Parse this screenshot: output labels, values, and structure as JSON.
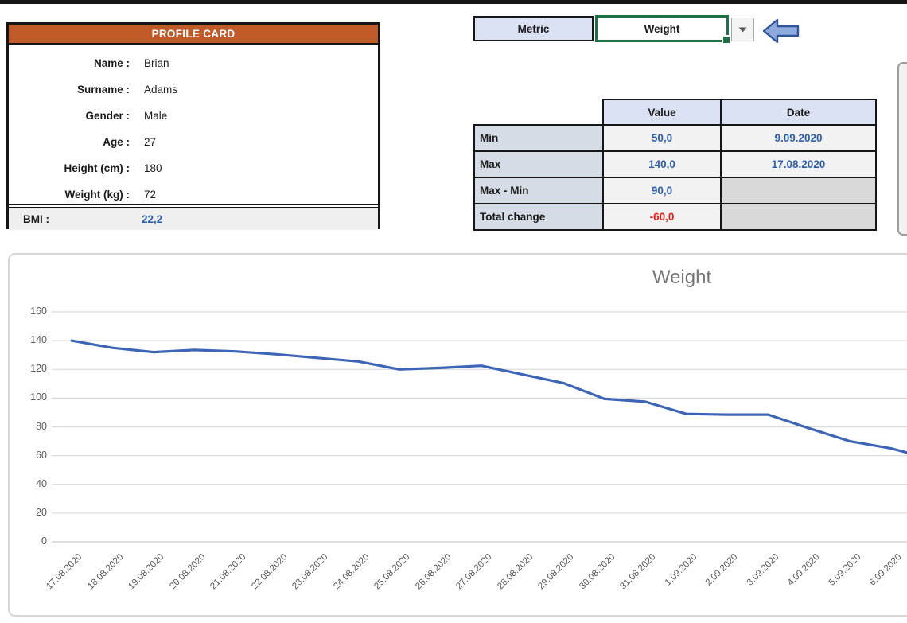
{
  "top_bar": {},
  "profile_card": {
    "title": "PROFILE CARD",
    "fields": [
      {
        "label": "Name :",
        "value": "Brian"
      },
      {
        "label": "Surname :",
        "value": "Adams"
      },
      {
        "label": "Gender :",
        "value": "Male"
      },
      {
        "label": "Age :",
        "value": "27"
      },
      {
        "label": "Height (cm) :",
        "value": "180"
      },
      {
        "label": "Weight (kg) :",
        "value": "72"
      }
    ],
    "bmi_label": "BMI :",
    "bmi_value": "22,2"
  },
  "metric_selector": {
    "label": "Metric",
    "selected_value": "Weight",
    "dropdown_icon": "triangle-down",
    "pointer_icon": "left-block-arrow"
  },
  "stats_table": {
    "columns": [
      "Value",
      "Date"
    ],
    "rows": [
      {
        "label": "Min",
        "value": "50,0",
        "date": "9.09.2020",
        "value_color": "blue"
      },
      {
        "label": "Max",
        "value": "140,0",
        "date": "17.08.2020",
        "value_color": "blue"
      },
      {
        "label": "Max - Min",
        "value": "90,0",
        "date": "",
        "value_color": "blue"
      },
      {
        "label": "Total change",
        "value": "-60,0",
        "date": "",
        "value_color": "red"
      }
    ]
  },
  "chart_data": {
    "type": "line",
    "title": "Weight",
    "categories": [
      "17.08.2020",
      "18.08.2020",
      "19.08.2020",
      "20.08.2020",
      "21.08.2020",
      "22.08.2020",
      "23.08.2020",
      "24.08.2020",
      "25.08.2020",
      "26.08.2020",
      "27.08.2020",
      "28.08.2020",
      "29.08.2020",
      "30.08.2020",
      "31.08.2020",
      "1.09.2020",
      "2.09.2020",
      "3.09.2020",
      "4.09.2020",
      "5.09.2020",
      "6.09.2020"
    ],
    "values": [
      140,
      135,
      132,
      133.5,
      132.5,
      130.5,
      128,
      125.5,
      120,
      121,
      122.5,
      116.5,
      110.5,
      99.5,
      97.5,
      89,
      88.5,
      88.5,
      79,
      70,
      65
    ],
    "clipped_continuation_value": 57.5,
    "ylim": [
      0,
      160
    ],
    "ytick_step": 20,
    "xlabel": "",
    "ylabel": "",
    "grid": true,
    "legend": "none",
    "x_label_rotation": 45,
    "line_color": "#3E65B5"
  },
  "colors": {
    "accent_orange": "#C05A28",
    "header_fill": "#D9E1F2",
    "row_label_fill": "#D6DCE5",
    "value_fill": "#F2F2F2",
    "empty_fill": "#D9D9D9",
    "blue": "#2E5EA6",
    "red": "#E32219",
    "selection_green": "#1F7145",
    "arrow_fill": "#8EA9DB",
    "arrow_stroke": "#2F5597",
    "grid_gray": "#DBDBDB"
  }
}
